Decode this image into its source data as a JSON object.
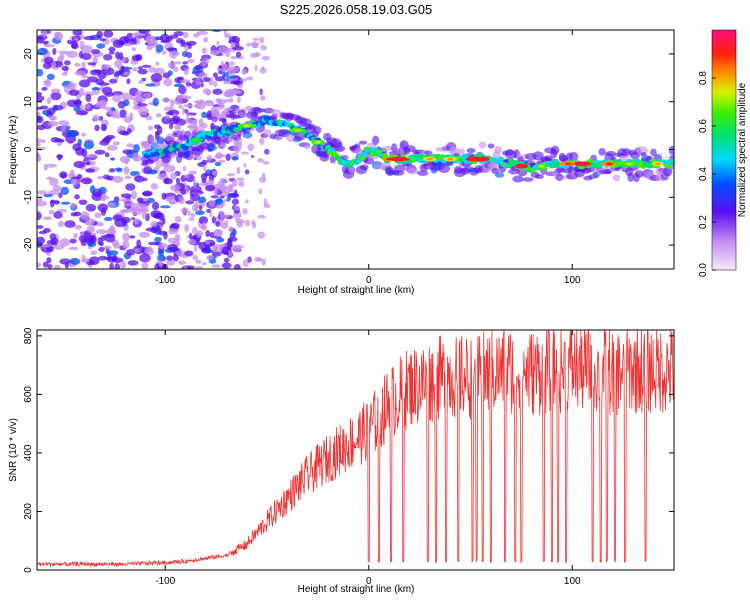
{
  "title": "S225.2026.058.19.03.G05",
  "chart_data": [
    {
      "type": "heatmap",
      "title": "S225.2026.058.19.03.G05",
      "xlabel": "Height of straight line (km)",
      "ylabel": "Frequency (Hz)",
      "xlim": [
        -163,
        150
      ],
      "ylim": [
        -25,
        25
      ],
      "xticks": [
        -100,
        0,
        100
      ],
      "yticks": [
        -20,
        -10,
        0,
        10,
        20
      ],
      "colorbar": {
        "label": "Normalized spectral amplitude",
        "range": [
          0.0,
          1.0
        ],
        "ticks": [
          "0.0",
          "0.2",
          "0.4",
          "0.6",
          "0.8"
        ]
      },
      "ridge": {
        "x": [
          -110,
          -100,
          -90,
          -80,
          -70,
          -60,
          -50,
          -40,
          -30,
          -20,
          -15,
          -10,
          -5,
          0,
          5,
          10,
          20,
          30,
          40,
          50,
          60,
          70,
          80,
          90,
          100,
          110,
          120,
          130,
          140,
          150
        ],
        "y": [
          -1,
          0,
          1,
          3,
          4,
          5,
          6,
          5,
          3,
          0,
          -2,
          -3,
          -2,
          0,
          -1,
          -2,
          -2,
          -2,
          -2,
          -2,
          -2,
          -3,
          -4,
          -3,
          -3,
          -3,
          -3,
          -3,
          -3,
          -3
        ]
      }
    },
    {
      "type": "line",
      "title": "",
      "xlabel": "Height of straight line (km)",
      "ylabel": "SNR (10 * v/v)",
      "xlim": [
        -163,
        150
      ],
      "ylim": [
        0,
        820
      ],
      "xticks": [
        -100,
        0,
        100
      ],
      "yticks": [
        0,
        200,
        400,
        600,
        800
      ],
      "series": [
        {
          "name": "SNR",
          "color": "#ee3333",
          "x": [
            -163,
            -140,
            -120,
            -100,
            -90,
            -80,
            -70,
            -60,
            -50,
            -40,
            -30,
            -20,
            -10,
            0,
            10,
            20,
            30,
            40,
            50,
            60,
            70,
            80,
            90,
            100,
            110,
            120,
            130,
            140,
            150
          ],
          "values": [
            20,
            20,
            20,
            25,
            30,
            40,
            50,
            90,
            170,
            250,
            330,
            390,
            440,
            490,
            580,
            640,
            660,
            680,
            670,
            690,
            700,
            690,
            700,
            710,
            700,
            690,
            700,
            700,
            700
          ],
          "dropout_x": [
            0,
            5,
            11,
            17,
            29,
            33,
            38,
            44,
            51,
            53,
            56,
            60,
            67,
            72,
            75,
            86,
            90,
            93,
            97,
            110,
            114,
            117,
            121,
            126,
            136
          ]
        }
      ]
    }
  ]
}
